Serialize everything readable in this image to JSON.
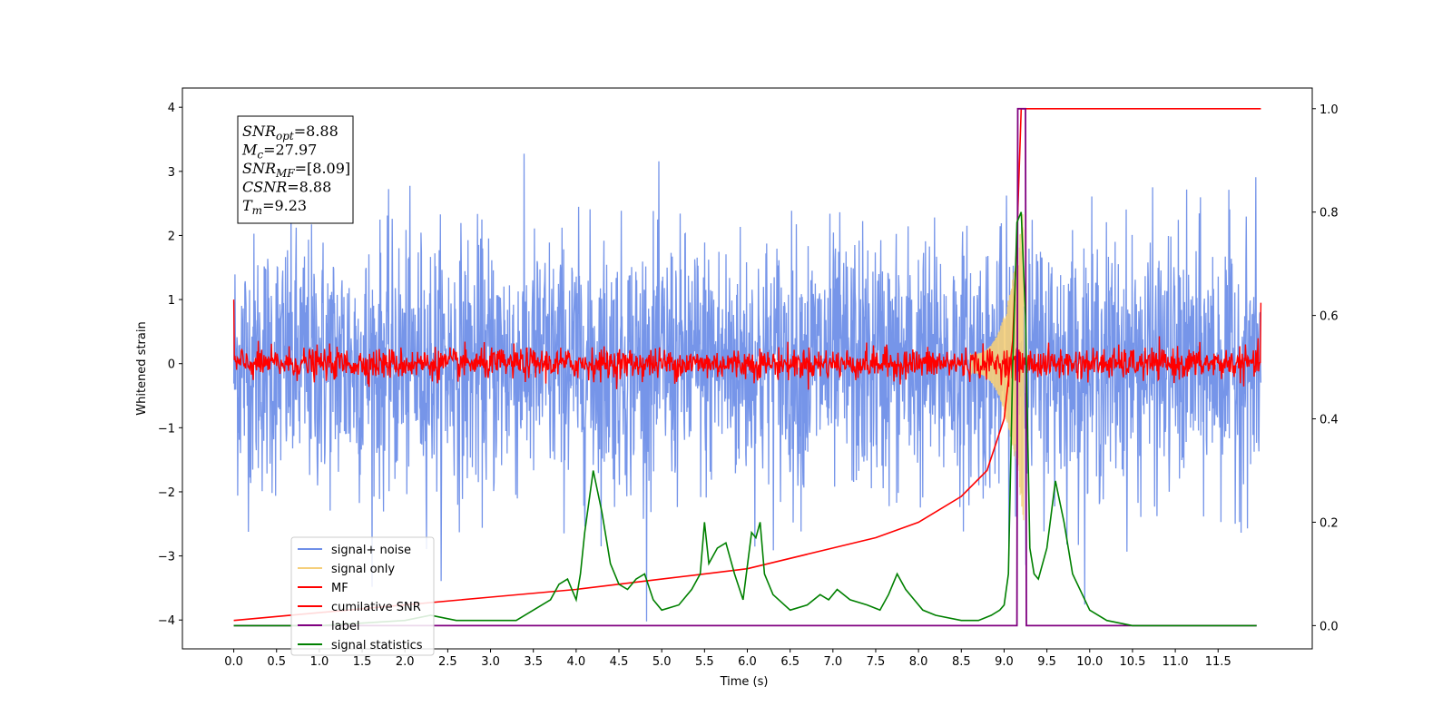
{
  "chart_data": {
    "type": "line",
    "xlabel": "Time (s)",
    "ylabel": "Whitened strain",
    "xlim": [
      -0.6,
      12.6
    ],
    "ylim": [
      -4.45,
      4.3
    ],
    "y2lim": [
      -0.045,
      1.04
    ],
    "xticks": [
      "0.0",
      "0.5",
      "1.0",
      "1.5",
      "2.0",
      "2.5",
      "3.0",
      "3.5",
      "4.0",
      "4.5",
      "5.0",
      "5.5",
      "6.0",
      "6.5",
      "7.0",
      "7.5",
      "8.0",
      "8.5",
      "9.0",
      "9.5",
      "10.0",
      "10.5",
      "11.0",
      "11.5"
    ],
    "yticks": [
      "4",
      "3",
      "2",
      "1",
      "0",
      "−1",
      "−2",
      "−3",
      "−4"
    ],
    "y2ticks": [
      "1.0",
      "0.8",
      "0.6",
      "0.4",
      "0.2",
      "0.0"
    ],
    "legend": {
      "location": "lower-left",
      "entries": [
        {
          "name": "signal+ noise",
          "color": "#6f8fe8"
        },
        {
          "name": "signal only",
          "color": "#f5cf7a"
        },
        {
          "name": "MF",
          "color": "#ff0000"
        },
        {
          "name": "cumilative SNR",
          "color": "#ff0000"
        },
        {
          "name": "label",
          "color": "#800080"
        },
        {
          "name": "signal statistics",
          "color": "#008000"
        }
      ]
    },
    "annotations": [
      {
        "var": "SNR",
        "sub": "opt",
        "value": "=8.88"
      },
      {
        "var": "M",
        "sub": "c",
        "value": "=27.97"
      },
      {
        "var": "SNR",
        "sub": "MF",
        "value": "=[8.09]"
      },
      {
        "var": "CSNR",
        "sub": "",
        "value": "=8.88"
      },
      {
        "var": "T",
        "sub": "m",
        "value": "=9.23"
      }
    ],
    "series": [
      {
        "name": "signal+ noise",
        "axis": "left",
        "color": "#6f8fe8",
        "x_range": [
          0.0,
          12.0
        ],
        "amplitude": 1.0,
        "peak_max": 3.9,
        "peak_min": -4.1
      },
      {
        "name": "signal only",
        "axis": "left",
        "color": "#f5cf7a",
        "x_range": [
          8.6,
          9.23
        ],
        "peak_max": 2.5
      },
      {
        "name": "MF",
        "axis": "left",
        "color": "#ff0000",
        "x_range": [
          0.0,
          12.0
        ],
        "amplitude": 0.12,
        "edge_values": [
          1.0,
          0.95
        ]
      },
      {
        "name": "cumilative SNR",
        "axis": "right",
        "color": "#ff0000",
        "x": [
          0.0,
          1.0,
          2.0,
          3.0,
          4.0,
          5.0,
          6.0,
          7.0,
          7.5,
          8.0,
          8.5,
          8.8,
          9.0,
          9.1,
          9.15,
          9.2,
          9.25,
          12.0
        ],
        "y": [
          0.01,
          0.025,
          0.04,
          0.055,
          0.07,
          0.09,
          0.11,
          0.15,
          0.17,
          0.2,
          0.25,
          0.3,
          0.4,
          0.55,
          0.75,
          1.0,
          1.0,
          1.0
        ]
      },
      {
        "name": "label",
        "axis": "right",
        "color": "#800080",
        "x": [
          0.0,
          9.15,
          9.16,
          9.25,
          9.26,
          11.95
        ],
        "y": [
          0.0,
          0.0,
          1.0,
          1.0,
          0.0,
          0.0
        ]
      },
      {
        "name": "signal statistics",
        "axis": "right",
        "color": "#008000",
        "x": [
          0.0,
          1.0,
          2.0,
          2.3,
          2.6,
          3.0,
          3.3,
          3.5,
          3.7,
          3.8,
          3.9,
          4.0,
          4.05,
          4.1,
          4.2,
          4.3,
          4.4,
          4.5,
          4.6,
          4.7,
          4.8,
          4.9,
          5.0,
          5.2,
          5.35,
          5.45,
          5.5,
          5.55,
          5.65,
          5.75,
          5.85,
          5.95,
          6.05,
          6.1,
          6.15,
          6.2,
          6.3,
          6.5,
          6.7,
          6.85,
          6.95,
          7.05,
          7.2,
          7.4,
          7.55,
          7.65,
          7.75,
          7.85,
          7.95,
          8.05,
          8.2,
          8.5,
          8.7,
          8.85,
          8.95,
          9.0,
          9.05,
          9.1,
          9.15,
          9.2,
          9.25,
          9.3,
          9.35,
          9.4,
          9.5,
          9.6,
          9.7,
          9.8,
          10.0,
          10.2,
          10.5,
          11.0,
          11.95
        ],
        "y": [
          0.0,
          0.0,
          0.01,
          0.02,
          0.01,
          0.01,
          0.01,
          0.03,
          0.05,
          0.08,
          0.09,
          0.05,
          0.1,
          0.18,
          0.3,
          0.22,
          0.12,
          0.08,
          0.07,
          0.09,
          0.1,
          0.05,
          0.03,
          0.04,
          0.07,
          0.1,
          0.2,
          0.12,
          0.15,
          0.16,
          0.1,
          0.05,
          0.18,
          0.17,
          0.2,
          0.1,
          0.06,
          0.03,
          0.04,
          0.06,
          0.05,
          0.07,
          0.05,
          0.04,
          0.03,
          0.06,
          0.1,
          0.07,
          0.05,
          0.03,
          0.02,
          0.01,
          0.01,
          0.02,
          0.03,
          0.04,
          0.1,
          0.5,
          0.78,
          0.8,
          0.6,
          0.15,
          0.1,
          0.09,
          0.15,
          0.28,
          0.2,
          0.1,
          0.03,
          0.01,
          0.0,
          0.0,
          0.0
        ]
      }
    ]
  }
}
